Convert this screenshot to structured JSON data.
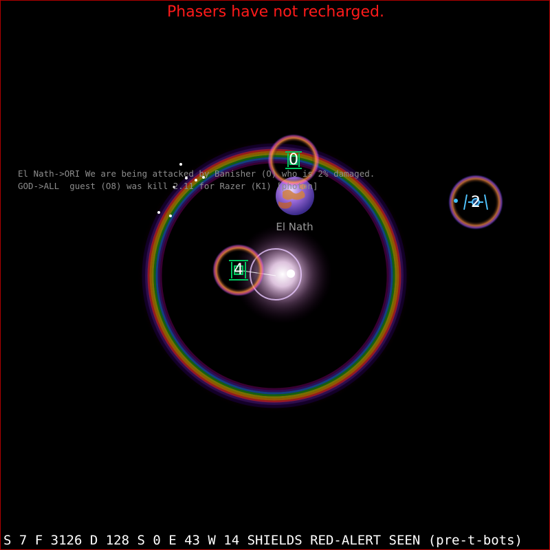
{
  "warning": "Phasers have not recharged.",
  "messages": [
    "El Nath->ORI We are being attacked by Banisher (O) who is 2% damaged.",
    "GOD->ALL  guest (O8) was kill 2.11 for Razer (K1) [photon]"
  ],
  "planet": {
    "name": "El Nath"
  },
  "ships": [
    {
      "number": "0",
      "team_color": "#00c860"
    },
    {
      "number": "4",
      "team_color": "#00c860"
    },
    {
      "number": "2",
      "team_color": "#4fc3ff"
    }
  ],
  "status_bar": "S 7 F 3126 D 128 S 0 E 43 W 14 SHIELDS RED-ALERT SEEN (pre-t-bots)",
  "colors": {
    "warning": "#ff1a1a",
    "border": "#b00000",
    "message_text": "#8c8c8c"
  }
}
